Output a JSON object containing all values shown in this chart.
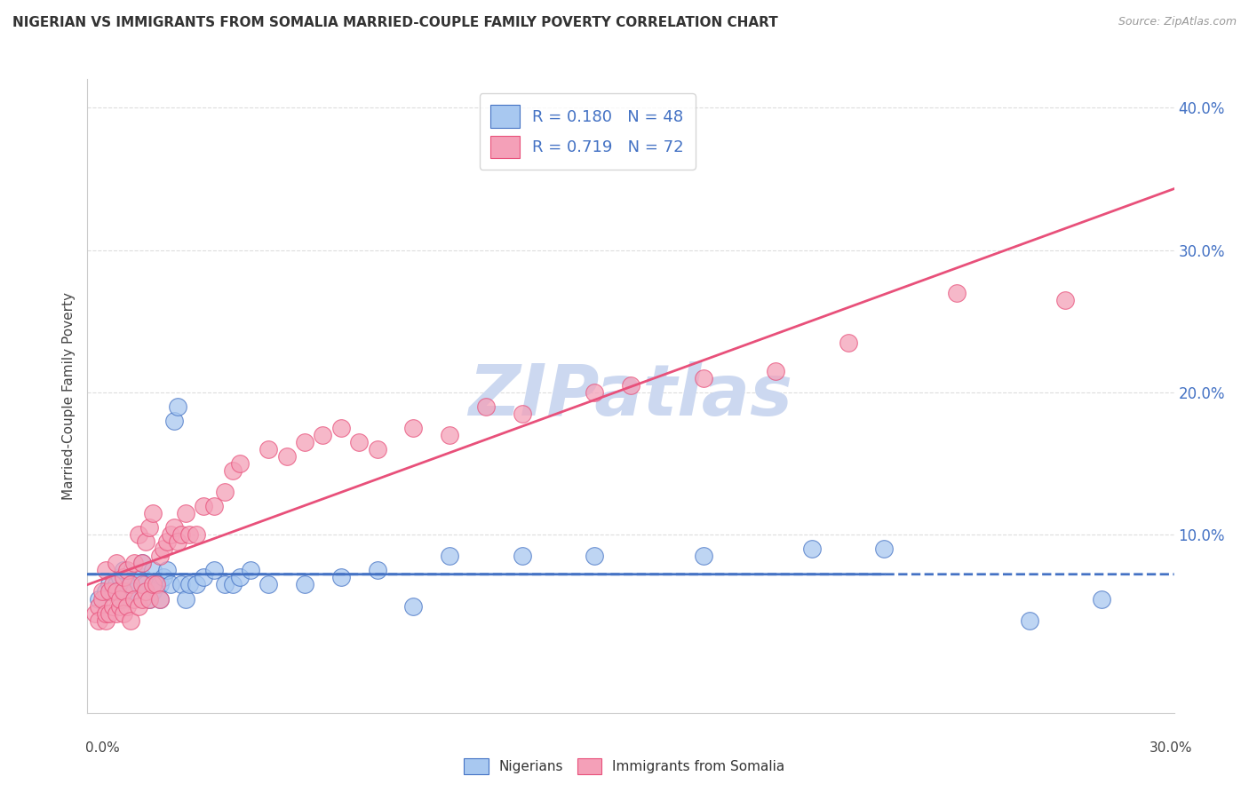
{
  "title": "NIGERIAN VS IMMIGRANTS FROM SOMALIA MARRIED-COUPLE FAMILY POVERTY CORRELATION CHART",
  "source": "Source: ZipAtlas.com",
  "ylabel": "Married-Couple Family Poverty",
  "xlim": [
    0.0,
    0.3
  ],
  "ylim": [
    -0.025,
    0.42
  ],
  "legend_r1": "R = 0.180",
  "legend_n1": "N = 48",
  "legend_r2": "R = 0.719",
  "legend_n2": "N = 72",
  "nigerian_color": "#a8c8f0",
  "somalia_color": "#f4a0b8",
  "nigerian_line_color": "#4472c4",
  "somalia_line_color": "#e8507a",
  "watermark": "ZIPatlas",
  "watermark_color": "#ccd8f0",
  "nigerian_scatter_x": [
    0.003,
    0.005,
    0.006,
    0.007,
    0.008,
    0.009,
    0.01,
    0.01,
    0.011,
    0.012,
    0.013,
    0.014,
    0.015,
    0.015,
    0.016,
    0.017,
    0.018,
    0.018,
    0.02,
    0.02,
    0.021,
    0.022,
    0.023,
    0.024,
    0.025,
    0.026,
    0.027,
    0.028,
    0.03,
    0.032,
    0.035,
    0.038,
    0.04,
    0.042,
    0.045,
    0.05,
    0.06,
    0.07,
    0.08,
    0.09,
    0.1,
    0.12,
    0.14,
    0.17,
    0.2,
    0.22,
    0.26,
    0.28
  ],
  "nigerian_scatter_y": [
    0.055,
    0.06,
    0.065,
    0.06,
    0.065,
    0.07,
    0.055,
    0.075,
    0.06,
    0.065,
    0.06,
    0.065,
    0.07,
    0.08,
    0.065,
    0.055,
    0.075,
    0.06,
    0.065,
    0.055,
    0.07,
    0.075,
    0.065,
    0.18,
    0.19,
    0.065,
    0.055,
    0.065,
    0.065,
    0.07,
    0.075,
    0.065,
    0.065,
    0.07,
    0.075,
    0.065,
    0.065,
    0.07,
    0.075,
    0.05,
    0.085,
    0.085,
    0.085,
    0.085,
    0.09,
    0.09,
    0.04,
    0.055
  ],
  "somalia_scatter_x": [
    0.002,
    0.003,
    0.003,
    0.004,
    0.004,
    0.005,
    0.005,
    0.005,
    0.006,
    0.006,
    0.007,
    0.007,
    0.008,
    0.008,
    0.008,
    0.009,
    0.009,
    0.01,
    0.01,
    0.01,
    0.011,
    0.011,
    0.012,
    0.012,
    0.013,
    0.013,
    0.014,
    0.014,
    0.015,
    0.015,
    0.015,
    0.016,
    0.016,
    0.017,
    0.017,
    0.018,
    0.018,
    0.019,
    0.02,
    0.02,
    0.021,
    0.022,
    0.023,
    0.024,
    0.025,
    0.026,
    0.027,
    0.028,
    0.03,
    0.032,
    0.035,
    0.038,
    0.04,
    0.042,
    0.05,
    0.055,
    0.06,
    0.065,
    0.07,
    0.075,
    0.08,
    0.09,
    0.1,
    0.11,
    0.12,
    0.14,
    0.15,
    0.17,
    0.19,
    0.21,
    0.24,
    0.27
  ],
  "somalia_scatter_y": [
    0.045,
    0.05,
    0.04,
    0.055,
    0.06,
    0.04,
    0.045,
    0.075,
    0.045,
    0.06,
    0.05,
    0.065,
    0.045,
    0.06,
    0.08,
    0.05,
    0.055,
    0.045,
    0.06,
    0.07,
    0.05,
    0.075,
    0.04,
    0.065,
    0.055,
    0.08,
    0.05,
    0.1,
    0.055,
    0.065,
    0.08,
    0.06,
    0.095,
    0.055,
    0.105,
    0.065,
    0.115,
    0.065,
    0.055,
    0.085,
    0.09,
    0.095,
    0.1,
    0.105,
    0.095,
    0.1,
    0.115,
    0.1,
    0.1,
    0.12,
    0.12,
    0.13,
    0.145,
    0.15,
    0.16,
    0.155,
    0.165,
    0.17,
    0.175,
    0.165,
    0.16,
    0.175,
    0.17,
    0.19,
    0.185,
    0.2,
    0.205,
    0.21,
    0.215,
    0.235,
    0.27,
    0.265
  ],
  "background_color": "#ffffff",
  "grid_color": "#dddddd",
  "nigerian_R": 0.18,
  "somalia_R": 0.719,
  "n_nigerian": 48,
  "n_somalia": 72
}
